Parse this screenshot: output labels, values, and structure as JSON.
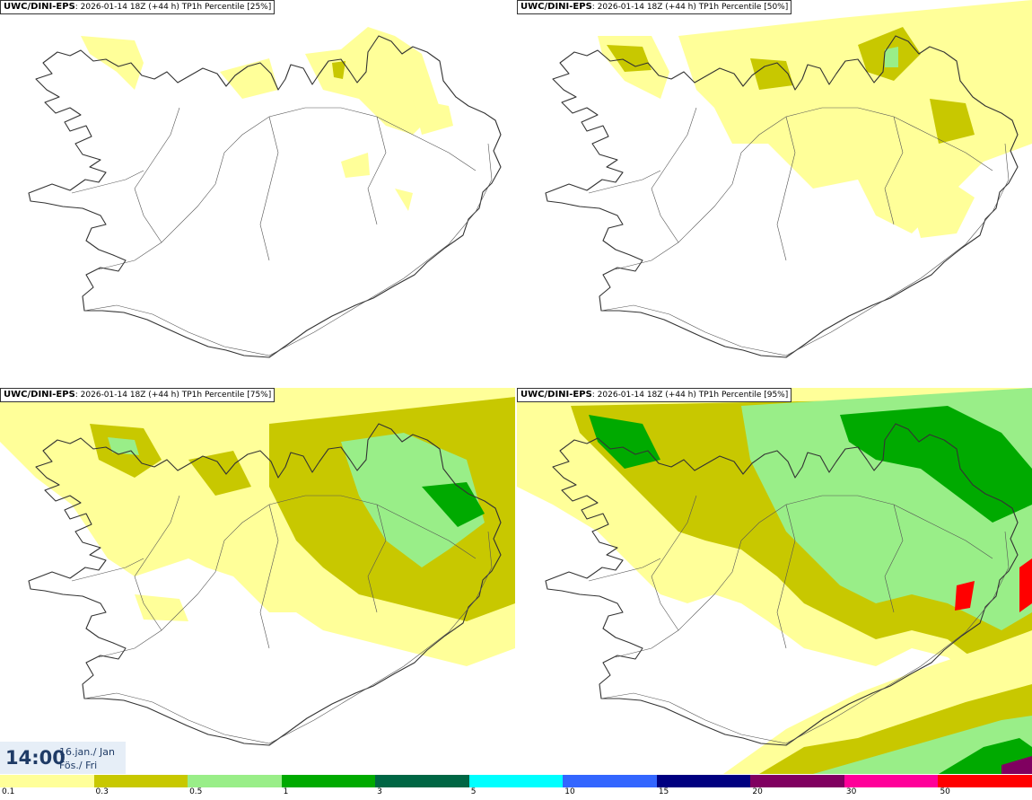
{
  "panels": [
    {
      "model": "UWC/DINI-EPS",
      "info": ": 2026-01-14 18Z (+44 h) TP1h Percentile [25%]",
      "level": 0
    },
    {
      "model": "UWC/DINI-EPS",
      "info": ": 2026-01-14 18Z (+44 h) TP1h Percentile [50%]",
      "level": 1
    },
    {
      "model": "UWC/DINI-EPS",
      "info": ": 2026-01-14 18Z (+44 h) TP1h Percentile [75%]",
      "level": 2
    },
    {
      "model": "UWC/DINI-EPS",
      "info": ": 2026-01-14 18Z (+44 h) TP1h Percentile [95%]",
      "level": 3
    }
  ],
  "timestamp": {
    "time": "14:00",
    "date_line1": "16.jan./ Jan",
    "date_line2": "Fös./ Fri"
  },
  "legend": {
    "colors": [
      "#ffff99",
      "#c8c800",
      "#99ee88",
      "#00aa00",
      "#006644",
      "#00ffff",
      "#3366ff",
      "#000080",
      "#800060",
      "#ff0099",
      "#ff0000"
    ],
    "ticks": [
      "0.1",
      "0.3",
      "0.5",
      "1",
      "3",
      "5",
      "10",
      "15",
      "20",
      "30",
      "50"
    ]
  }
}
